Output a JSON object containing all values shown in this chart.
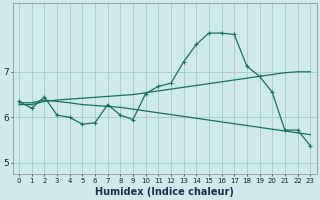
{
  "xlabel": "Humidex (Indice chaleur)",
  "bg_color": "#ceeaea",
  "grid_color": "#aacece",
  "line_color": "#1a7060",
  "line1_with_markers": {
    "x": [
      0,
      1,
      2,
      3,
      4,
      5,
      6,
      7,
      8,
      9,
      10,
      11,
      12,
      13,
      14,
      15,
      16,
      17,
      18,
      19,
      20,
      21,
      22,
      23
    ],
    "y": [
      6.35,
      6.2,
      6.45,
      6.05,
      6.0,
      5.85,
      5.88,
      6.28,
      6.05,
      5.95,
      6.52,
      6.68,
      6.75,
      7.22,
      7.6,
      7.85,
      7.85,
      7.82,
      7.12,
      6.9,
      6.55,
      5.72,
      5.72,
      5.38
    ]
  },
  "line2_rising": {
    "x": [
      0,
      1,
      2,
      3,
      4,
      5,
      6,
      7,
      8,
      9,
      10,
      11,
      12,
      13,
      14,
      15,
      16,
      17,
      18,
      19,
      20,
      21,
      22,
      23
    ],
    "y": [
      6.28,
      6.28,
      6.35,
      6.38,
      6.4,
      6.42,
      6.44,
      6.46,
      6.48,
      6.5,
      6.54,
      6.58,
      6.62,
      6.66,
      6.7,
      6.74,
      6.78,
      6.82,
      6.86,
      6.9,
      6.94,
      6.98,
      7.0,
      7.0
    ]
  },
  "line3_falling": {
    "x": [
      0,
      1,
      2,
      3,
      4,
      5,
      6,
      7,
      8,
      9,
      10,
      11,
      12,
      13,
      14,
      15,
      16,
      17,
      18,
      19,
      20,
      21,
      22,
      23
    ],
    "y": [
      6.32,
      6.32,
      6.38,
      6.35,
      6.32,
      6.28,
      6.26,
      6.24,
      6.22,
      6.18,
      6.14,
      6.1,
      6.06,
      6.02,
      5.98,
      5.94,
      5.9,
      5.86,
      5.82,
      5.78,
      5.74,
      5.7,
      5.66,
      5.62
    ]
  },
  "ylim": [
    4.75,
    8.5
  ],
  "yticks": [
    5,
    6,
    7
  ],
  "xticks": [
    0,
    1,
    2,
    3,
    4,
    5,
    6,
    7,
    8,
    9,
    10,
    11,
    12,
    13,
    14,
    15,
    16,
    17,
    18,
    19,
    20,
    21,
    22,
    23
  ]
}
